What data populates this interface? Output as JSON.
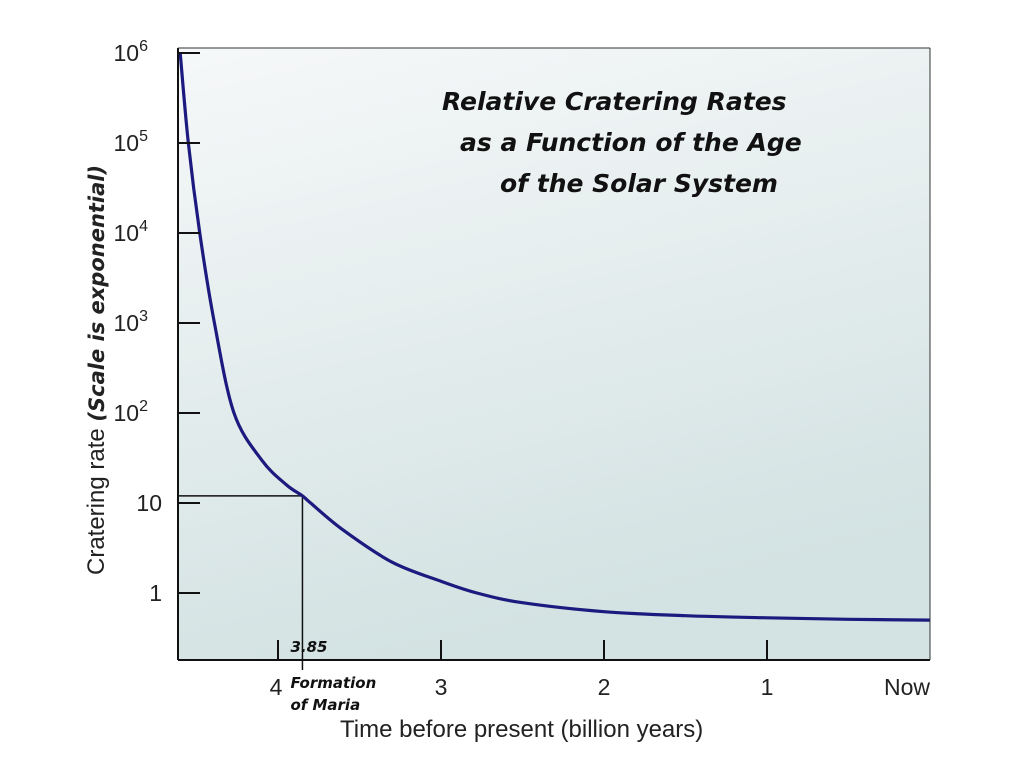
{
  "chart_data": {
    "type": "line",
    "title_lines": [
      "Relative Cratering Rates",
      "as a Function of the Age",
      "of the Solar System"
    ],
    "xlabel": "Time before present (billion years)",
    "ylabel_main": "Cratering rate ",
    "ylabel_note": "(Scale is exponential)",
    "y_scale": "log",
    "x_reversed": true,
    "xlim": [
      4.6,
      0
    ],
    "ylim": [
      0.3,
      1000000
    ],
    "x_ticks": [
      {
        "value": 4,
        "label": "4"
      },
      {
        "value": 3,
        "label": "3"
      },
      {
        "value": 2,
        "label": "2"
      },
      {
        "value": 1,
        "label": "1"
      },
      {
        "value": 0,
        "label": "Now"
      }
    ],
    "y_ticks": [
      {
        "value": 1,
        "label": "1",
        "sup": ""
      },
      {
        "value": 10,
        "label": "10",
        "sup": ""
      },
      {
        "value": 100,
        "label": "10",
        "sup": "2"
      },
      {
        "value": 1000,
        "label": "10",
        "sup": "3"
      },
      {
        "value": 10000,
        "label": "10",
        "sup": "4"
      },
      {
        "value": 100000,
        "label": "10",
        "sup": "5"
      },
      {
        "value": 1000000,
        "label": "10",
        "sup": "6"
      }
    ],
    "series": [
      {
        "color": "#1c1a7e",
        "x": [
          4.6,
          4.55,
          4.48,
          4.39,
          4.27,
          4.1,
          3.95,
          3.85,
          3.8,
          3.6,
          3.3,
          3.0,
          2.78,
          2.5,
          2.0,
          1.5,
          1.0,
          0.5,
          0.0
        ],
        "y": [
          1000000,
          100000,
          10000,
          1000,
          100,
          30,
          16,
          12,
          10,
          5,
          2.2,
          1.35,
          1.0,
          0.78,
          0.62,
          0.56,
          0.53,
          0.51,
          0.5
        ]
      }
    ],
    "annotation": {
      "x": 3.85,
      "y": 12,
      "value_label": "3.85",
      "text_lines": [
        "Formation",
        "of Maria"
      ]
    },
    "grid": false,
    "background": [
      "#f6f8f9",
      "#d3e2e2"
    ]
  }
}
